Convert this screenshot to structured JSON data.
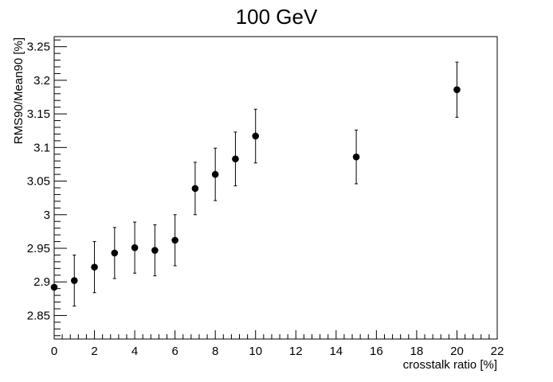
{
  "chart_data": {
    "type": "scatter",
    "title": "100 GeV",
    "xlabel": "crosstalk ratio [%]",
    "ylabel": "RMS90/Mean90 [%]",
    "xlim": [
      0,
      22
    ],
    "ylim": [
      2.815,
      3.265
    ],
    "grid": false,
    "legend": "none",
    "x_ticks": [
      0,
      2,
      4,
      6,
      8,
      10,
      12,
      14,
      16,
      18,
      20,
      22
    ],
    "x_tick_labels": [
      "0",
      "2",
      "4",
      "6",
      "8",
      "10",
      "12",
      "14",
      "16",
      "18",
      "20",
      "22"
    ],
    "y_ticks": [
      2.85,
      2.9,
      2.95,
      3.0,
      3.05,
      3.1,
      3.15,
      3.2,
      3.25
    ],
    "y_tick_labels": [
      "2.85",
      "2.9",
      "2.95",
      "3",
      "3.05",
      "3.1",
      "3.15",
      "3.2",
      "3.25"
    ],
    "series": [
      {
        "points": [
          {
            "x": 0,
            "y": 2.892,
            "err": 0.0
          },
          {
            "x": 1,
            "y": 2.902,
            "err": 0.038
          },
          {
            "x": 2,
            "y": 2.922,
            "err": 0.038
          },
          {
            "x": 3,
            "y": 2.943,
            "err": 0.038
          },
          {
            "x": 4,
            "y": 2.951,
            "err": 0.038
          },
          {
            "x": 5,
            "y": 2.947,
            "err": 0.038
          },
          {
            "x": 6,
            "y": 2.962,
            "err": 0.038
          },
          {
            "x": 7,
            "y": 3.039,
            "err": 0.039
          },
          {
            "x": 8,
            "y": 3.06,
            "err": 0.039
          },
          {
            "x": 9,
            "y": 3.083,
            "err": 0.04
          },
          {
            "x": 10,
            "y": 3.117,
            "err": 0.04
          },
          {
            "x": 15,
            "y": 3.086,
            "err": 0.04
          },
          {
            "x": 20,
            "y": 3.186,
            "err": 0.041
          }
        ]
      }
    ],
    "colors": {
      "marker": "#000000",
      "axis": "#000000"
    }
  }
}
